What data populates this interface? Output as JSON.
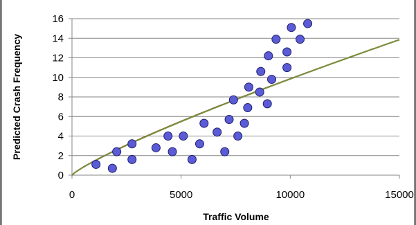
{
  "chart_data": {
    "type": "scatter",
    "title": "",
    "xlabel": "Traffic Volume",
    "ylabel": "Predicted Crash Frequency",
    "xlim": [
      0,
      15000
    ],
    "ylim": [
      0,
      16
    ],
    "xticks": [
      0,
      5000,
      10000,
      15000
    ],
    "yticks": [
      0,
      2,
      4,
      6,
      8,
      10,
      12,
      14,
      16
    ],
    "xtick_labels": [
      "0",
      "5000",
      "10000",
      "15000"
    ],
    "ytick_labels": [
      "0",
      "2",
      "4",
      "6",
      "8",
      "10",
      "12",
      "14",
      "16"
    ],
    "grid": "horizontal",
    "legend": "none",
    "points": [
      {
        "x": 1100,
        "y": 1.1
      },
      {
        "x": 1850,
        "y": 0.7
      },
      {
        "x": 2050,
        "y": 2.4
      },
      {
        "x": 2750,
        "y": 3.2
      },
      {
        "x": 2750,
        "y": 1.6
      },
      {
        "x": 3850,
        "y": 2.8
      },
      {
        "x": 4400,
        "y": 4.0
      },
      {
        "x": 4600,
        "y": 2.4
      },
      {
        "x": 5100,
        "y": 4.0
      },
      {
        "x": 5500,
        "y": 1.6
      },
      {
        "x": 5850,
        "y": 3.2
      },
      {
        "x": 6050,
        "y": 5.3
      },
      {
        "x": 6650,
        "y": 4.4
      },
      {
        "x": 7000,
        "y": 2.4
      },
      {
        "x": 7200,
        "y": 5.7
      },
      {
        "x": 7400,
        "y": 7.7
      },
      {
        "x": 7600,
        "y": 4.0
      },
      {
        "x": 7900,
        "y": 5.3
      },
      {
        "x": 8050,
        "y": 6.9
      },
      {
        "x": 8100,
        "y": 9.0
      },
      {
        "x": 8600,
        "y": 8.5
      },
      {
        "x": 8650,
        "y": 10.6
      },
      {
        "x": 8950,
        "y": 7.3
      },
      {
        "x": 9000,
        "y": 12.2
      },
      {
        "x": 9150,
        "y": 9.8
      },
      {
        "x": 9350,
        "y": 13.9
      },
      {
        "x": 9850,
        "y": 11.0
      },
      {
        "x": 9850,
        "y": 12.6
      },
      {
        "x": 10050,
        "y": 15.1
      },
      {
        "x": 10450,
        "y": 13.9
      },
      {
        "x": 10800,
        "y": 15.5
      }
    ],
    "curves": [
      {
        "color": "#8B2E2E",
        "a": 0.0043,
        "b": 0.84
      },
      {
        "color": "#77933C",
        "a": 0.0041,
        "b": 0.845
      }
    ],
    "marker_color": "#5B5BD6",
    "marker_stroke": "#1F1F6E"
  }
}
